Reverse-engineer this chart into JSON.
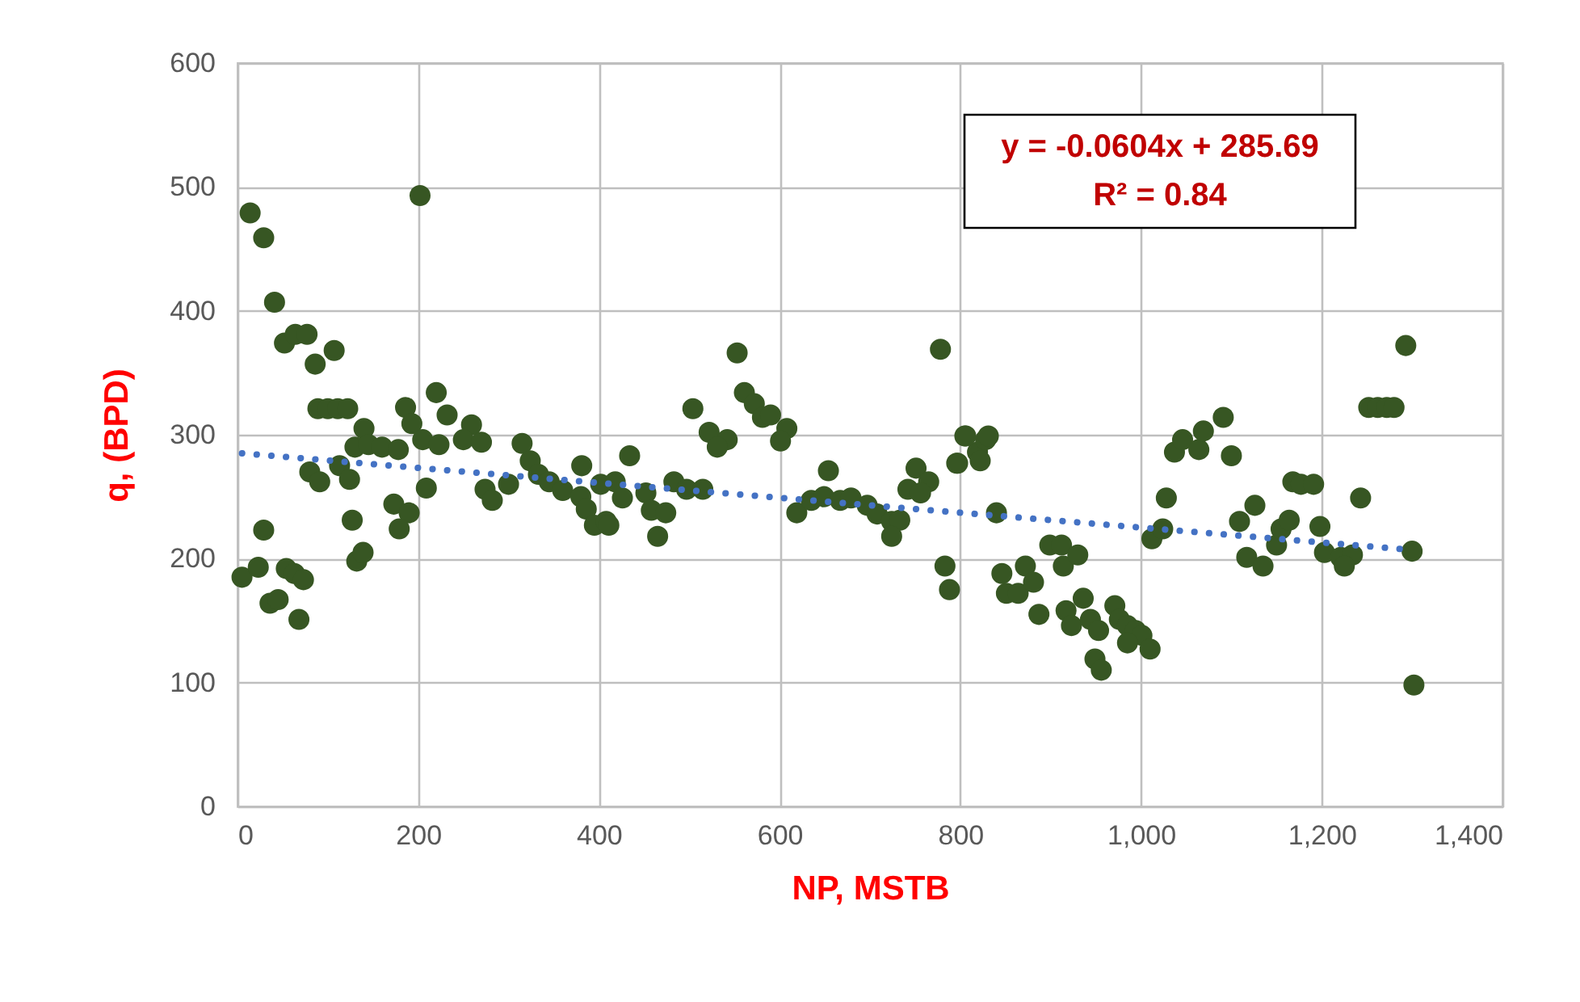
{
  "chart_data": {
    "type": "scatter",
    "xlabel": "NP, MSTB",
    "ylabel": "q, (BPD)",
    "xlim": [
      0,
      1400
    ],
    "xticks": [
      0,
      200,
      400,
      600,
      800,
      {
        "value": 1000,
        "label": "1,000"
      },
      {
        "value": 1200,
        "label": "1,200"
      },
      {
        "value": 1400,
        "label": "1,400"
      }
    ],
    "ylim": [
      0,
      600
    ],
    "yticks": [
      0,
      100,
      200,
      300,
      400,
      500,
      600
    ],
    "grid": true,
    "annotations": [
      "y = -0.0604x + 285.69",
      "R² = 0.84"
    ],
    "series": [
      {
        "color": "#375623",
        "marker": "circle",
        "x": [
          14,
          29,
          41,
          52,
          64,
          77,
          86,
          107,
          89,
          100,
          111,
          122,
          202,
          220,
          186,
          193,
          232,
          259,
          140,
          130,
          145,
          160,
          178,
          205,
          223,
          250,
          270,
          80,
          91,
          113,
          124,
          209,
          173,
          190,
          179,
          127,
          132,
          139,
          29,
          5,
          23,
          54,
          63,
          73,
          36,
          45,
          68,
          274,
          282,
          315,
          324,
          300,
          333,
          345,
          360,
          380,
          381,
          386,
          395,
          402,
          418,
          553,
          561,
          572,
          581,
          590,
          608,
          601,
          504,
          522,
          542,
          531,
          434,
          426,
          408,
          411,
          452,
          458,
          474,
          465,
          483,
          497,
          515,
          654,
          619,
          635,
          649,
          667,
          679,
          697,
          708,
          724,
          733,
          724,
          751,
          765,
          742,
          756,
          778,
          805,
          796,
          819,
          828,
          783,
          788,
          806,
          831,
          797,
          822,
          840,
          846,
          851,
          864,
          872,
          881,
          899,
          912,
          914,
          930,
          887,
          917,
          923,
          936,
          944,
          953,
          949,
          956,
          971,
          976,
          985,
          994,
          1001,
          1010,
          985,
          1012,
          1024,
          1028,
          1037,
          1046,
          1064,
          1069,
          1091,
          1100,
          1109,
          1126,
          1117,
          1135,
          1150,
          1155,
          1168,
          1293,
          1252,
          1262,
          1272,
          1280,
          1177,
          1191,
          1243,
          1164,
          1198,
          1203,
          1221,
          1234,
          1225,
          1300,
          1302
        ],
        "values": [
          479,
          459,
          407,
          374,
          381,
          381,
          357,
          368,
          321,
          321,
          321,
          321,
          493,
          334,
          322,
          309,
          316,
          308,
          305,
          290,
          292,
          290,
          288,
          296,
          292,
          296,
          294,
          270,
          262,
          275,
          264,
          257,
          244,
          237,
          224,
          231,
          198,
          205,
          223,
          185,
          193,
          192,
          188,
          183,
          164,
          167,
          151,
          256,
          247,
          293,
          279,
          260,
          268,
          262,
          255,
          250,
          275,
          240,
          227,
          260,
          262,
          366,
          334,
          325,
          314,
          316,
          305,
          295,
          321,
          302,
          296,
          290,
          283,
          249,
          230,
          227,
          253,
          239,
          237,
          218,
          262,
          256,
          256,
          271,
          237,
          247,
          250,
          247,
          249,
          243,
          236,
          230,
          231,
          218,
          273,
          262,
          256,
          253,
          369,
          299,
          277,
          286,
          296,
          194,
          175,
          299,
          299,
          277,
          279,
          237,
          188,
          172,
          172,
          194,
          181,
          211,
          211,
          194,
          203,
          155,
          158,
          146,
          168,
          151,
          142,
          119,
          110,
          162,
          151,
          146,
          142,
          138,
          127,
          132,
          216,
          224,
          249,
          286,
          296,
          288,
          303,
          314,
          283,
          230,
          243,
          201,
          194,
          211,
          224,
          262,
          372,
          322,
          322,
          322,
          322,
          260,
          260,
          249,
          231,
          226,
          205,
          201,
          203,
          194,
          206,
          98
        ]
      },
      {
        "type": "line",
        "color": "#4472c4",
        "line_style": "dotted",
        "marker": "none",
        "x": [
          5,
          1300
        ],
        "values": [
          285,
          207
        ]
      }
    ]
  }
}
